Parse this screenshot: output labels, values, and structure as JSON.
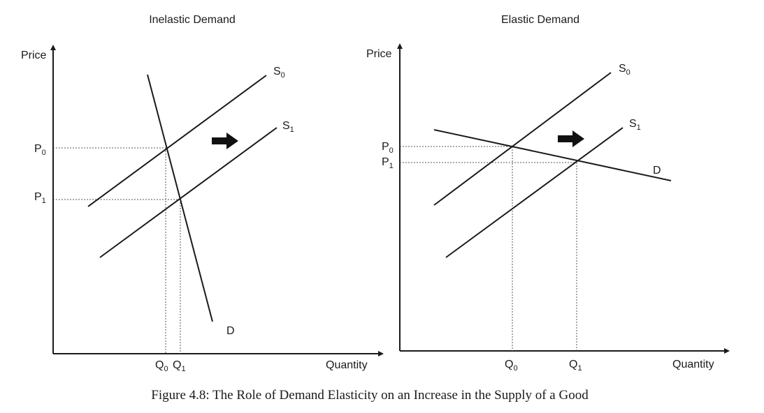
{
  "caption": "Figure 4.8: The Role of Demand Elasticity on an Increase in the Supply of a Good",
  "panels": [
    {
      "title": "Inelastic Demand",
      "y_axis_label": "Price",
      "x_axis_label": "Quantity",
      "p0": {
        "base": "P",
        "sub": "0"
      },
      "p1": {
        "base": "P",
        "sub": "1"
      },
      "q0": {
        "base": "Q",
        "sub": "0"
      },
      "q1": {
        "base": "Q",
        "sub": "1"
      },
      "s0": {
        "base": "S",
        "sub": "0"
      },
      "s1": {
        "base": "S",
        "sub": "1"
      },
      "d": "D"
    },
    {
      "title": "Elastic Demand",
      "y_axis_label": "Price",
      "x_axis_label": "Quantity",
      "p0": {
        "base": "P",
        "sub": "0"
      },
      "p1": {
        "base": "P",
        "sub": "1"
      },
      "q0": {
        "base": "Q",
        "sub": "0"
      },
      "q1": {
        "base": "Q",
        "sub": "1"
      },
      "s0": {
        "base": "S",
        "sub": "0"
      },
      "s1": {
        "base": "S",
        "sub": "1"
      },
      "d": "D"
    }
  ],
  "colors": {
    "ink": "#1a1a1a",
    "guide": "#555555"
  },
  "icons": {
    "shift": "right-arrow-icon"
  }
}
